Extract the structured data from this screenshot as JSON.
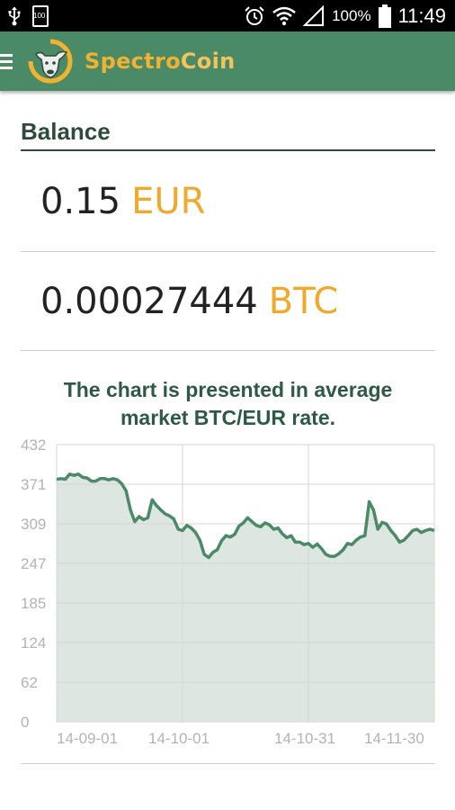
{
  "status_bar": {
    "battery_small_label": "100",
    "battery_percent": "100%",
    "time": "11:49"
  },
  "app_bar": {
    "brand_part1": "Spectro",
    "brand_part2": "Coin"
  },
  "balance": {
    "title": "Balance",
    "rows": [
      {
        "amount": "0.15",
        "currency": "EUR"
      },
      {
        "amount": "0.00027444",
        "currency": "BTC"
      }
    ]
  },
  "chart_note": {
    "line1": "The chart is presented in average",
    "line2": "market BTC/EUR rate."
  },
  "colors": {
    "app_bar": "#4b8a67",
    "accent": "#f0a92a",
    "line": "#4b8a67",
    "area": "#dde6e1"
  },
  "chart_data": {
    "type": "area",
    "title": "",
    "xlabel": "",
    "ylabel": "",
    "ylim": [
      0,
      432
    ],
    "y_ticks": [
      "432",
      "371",
      "309",
      "247",
      "185",
      "124",
      "62",
      "0"
    ],
    "x_ticks": [
      "14-09-01",
      "14-10-01",
      "14-10-31",
      "14-11-30"
    ],
    "grid": true,
    "series": [
      {
        "values": [
          378,
          379,
          378,
          386,
          384,
          386,
          381,
          380,
          375,
          375,
          379,
          379,
          377,
          379,
          377,
          371,
          360,
          330,
          312,
          320,
          315,
          318,
          346,
          337,
          330,
          324,
          321,
          316,
          300,
          298,
          306,
          302,
          295,
          283,
          261,
          256,
          264,
          268,
          282,
          290,
          288,
          292,
          305,
          310,
          318,
          312,
          306,
          304,
          310,
          307,
          300,
          302,
          293,
          287,
          290,
          280,
          280,
          276,
          278,
          272,
          277,
          270,
          261,
          258,
          258,
          262,
          268,
          278,
          276,
          283,
          288,
          290,
          343,
          330,
          300,
          311,
          308,
          298,
          290,
          280,
          283,
          290,
          298,
          300,
          295,
          298,
          300,
          298
        ]
      }
    ]
  }
}
